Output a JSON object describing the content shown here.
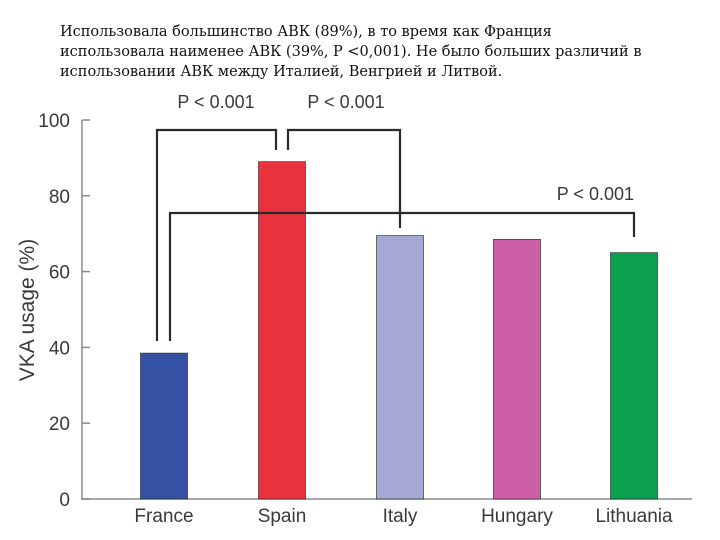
{
  "caption": {
    "line1": "Использовала большинство АВК (89%), в то время как Франция",
    "line2": "использовала наименее АВК (39%, P <0,001). Не было больших различий в",
    "line3": "использовании АВК между Италией, Венгрией и Литвой."
  },
  "chart_data": {
    "type": "bar",
    "title": "",
    "xlabel": "",
    "ylabel": "VKA usage (%)",
    "ylim": [
      0,
      100
    ],
    "yticks": [
      0,
      20,
      40,
      60,
      80,
      100
    ],
    "grid": false,
    "categories": [
      "France",
      "Spain",
      "Italy",
      "Hungary",
      "Lithuania"
    ],
    "values": [
      38.5,
      89,
      69.5,
      68.5,
      65
    ],
    "colors": [
      "#3551a3",
      "#e8333e",
      "#a5a8d2",
      "#cc5fa5",
      "#0aa04f"
    ],
    "annotations": [
      {
        "text": "P < 0.001",
        "from": "France",
        "to": "Spain"
      },
      {
        "text": "P < 0.001",
        "from": "Spain",
        "to": "Italy"
      },
      {
        "text": "P < 0.001",
        "from": "France",
        "to": "Lithuania"
      }
    ]
  }
}
